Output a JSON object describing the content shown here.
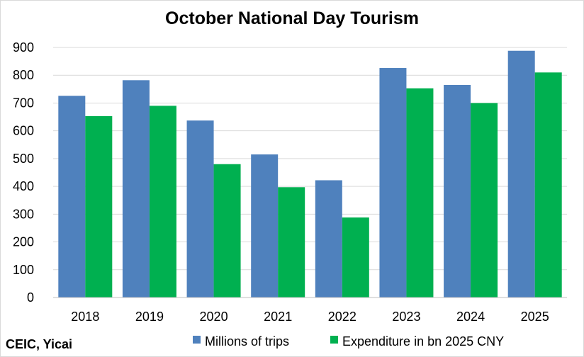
{
  "chart_data": {
    "type": "bar",
    "title": "October National Day Tourism",
    "categories": [
      "2018",
      "2019",
      "2020",
      "2021",
      "2022",
      "2023",
      "2024",
      "2025"
    ],
    "series": [
      {
        "name": "Millions of trips",
        "color": "#4F81BD",
        "values": [
          726,
          782,
          637,
          515,
          422,
          826,
          765,
          888
        ]
      },
      {
        "name": "Expenditure in bn 2025 CNY",
        "color": "#00B050",
        "values": [
          653,
          690,
          480,
          397,
          288,
          753,
          700,
          810
        ]
      }
    ],
    "ylim": [
      0,
      900
    ],
    "yticks": [
      "0",
      "100",
      "200",
      "300",
      "400",
      "500",
      "600",
      "700",
      "800",
      "900"
    ],
    "grid": true,
    "legend_position": "bottom"
  },
  "source": "CEIC, Yicai",
  "colors": {
    "grid": "#D9D9D9",
    "axis": "#BFBFBF",
    "border": "#D9D9D9"
  }
}
